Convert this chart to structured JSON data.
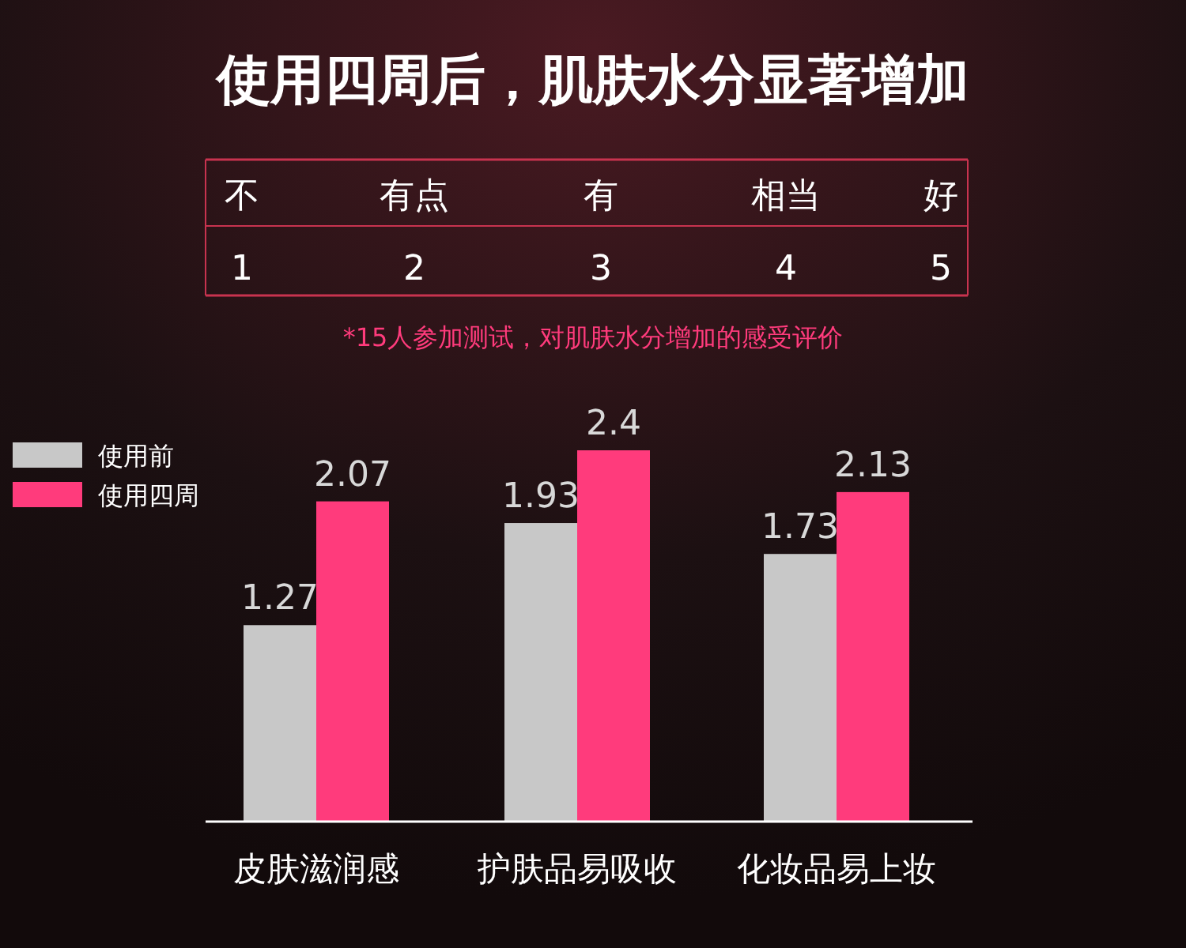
{
  "chart_data": {
    "type": "bar",
    "title": "使用四周后，肌肤水分显著增加",
    "categories": [
      "皮肤滋润感",
      "护肤品易吸收",
      "化妆品易上妆"
    ],
    "series": [
      {
        "name": "使用前",
        "color": "#c8c8c8",
        "values": [
          1.27,
          1.93,
          1.73
        ]
      },
      {
        "name": "使用四周",
        "color": "#ff3b7c",
        "values": [
          2.07,
          2.4,
          2.13
        ]
      }
    ],
    "data_labels": true,
    "legend": "top left",
    "annotations": [
      "不",
      "有点",
      "有",
      "相当",
      "好",
      "1",
      "2",
      "3",
      "4",
      "5",
      "*15人参加测试，对肌肤水分增加的感受评价"
    ]
  }
}
